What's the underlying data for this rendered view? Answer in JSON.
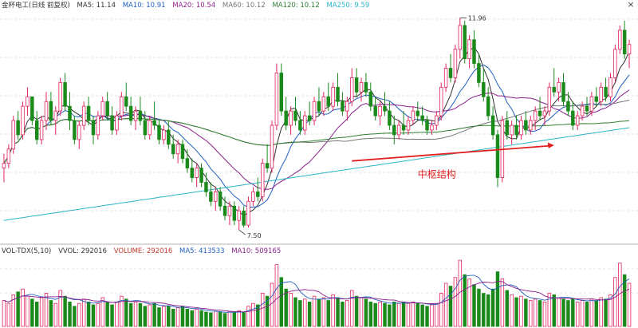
{
  "price_panel": {
    "stock_label": "金杯电工(日线 前复权)",
    "indicators": [
      {
        "label": "MA5: 11.14",
        "color": "#333333"
      },
      {
        "label": "MA10: 10.91",
        "color": "#1f5fbf"
      },
      {
        "label": "MA20: 10.54",
        "color": "#8a1f8a"
      },
      {
        "label": "MA60: 10.12",
        "color": "#777777"
      },
      {
        "label": "MA120: 10.12",
        "color": "#2e7d32"
      },
      {
        "label": "MA250: 9.59",
        "color": "#2bb5c6"
      }
    ],
    "high_label": "11.96",
    "low_label": "7.50",
    "annotation": "中枢结构",
    "close_symbol": "×"
  },
  "volume_panel": {
    "label": "VOL-TDX(5,10)",
    "indicators": [
      {
        "label": "VVOL: 292016",
        "color": "#333333"
      },
      {
        "label": "VOLUME: 292016",
        "color": "#c0392b"
      },
      {
        "label": "MA5: 413533",
        "color": "#1f5fbf"
      },
      {
        "label": "MA10: 509165",
        "color": "#8a1f8a"
      }
    ]
  },
  "colors": {
    "up": "#e0245e",
    "down": "#1a8a1a",
    "arrow": "#e02020",
    "annotation": "#e02020",
    "grid": "#c8c8c8"
  },
  "chart_data": {
    "type": "candlestick",
    "title": "金杯电工(日线 前复权)",
    "price_range": [
      7.3,
      12.1
    ],
    "grid": "dashed horizontal",
    "candles_ohlc": [
      [
        8.8,
        9.1,
        8.5,
        8.9
      ],
      [
        8.9,
        9.3,
        8.8,
        9.2
      ],
      [
        9.2,
        9.9,
        9.1,
        9.8
      ],
      [
        9.8,
        10.0,
        9.4,
        9.5
      ],
      [
        9.5,
        10.2,
        9.4,
        10.1
      ],
      [
        10.1,
        10.5,
        9.9,
        10.3
      ],
      [
        10.3,
        10.3,
        9.7,
        9.8
      ],
      [
        9.8,
        10.0,
        9.3,
        9.4
      ],
      [
        9.4,
        9.9,
        9.3,
        9.8
      ],
      [
        9.8,
        10.4,
        9.6,
        10.2
      ],
      [
        10.2,
        10.4,
        9.7,
        9.8
      ],
      [
        9.8,
        10.1,
        9.5,
        10.0
      ],
      [
        10.0,
        10.7,
        9.9,
        10.6
      ],
      [
        10.6,
        10.8,
        10.0,
        10.1
      ],
      [
        10.1,
        10.4,
        9.6,
        9.8
      ],
      [
        9.8,
        9.9,
        9.3,
        9.4
      ],
      [
        9.4,
        9.8,
        9.2,
        9.7
      ],
      [
        9.7,
        10.2,
        9.6,
        10.1
      ],
      [
        10.1,
        10.3,
        9.7,
        9.8
      ],
      [
        9.8,
        9.9,
        9.3,
        9.5
      ],
      [
        9.5,
        10.0,
        9.4,
        9.9
      ],
      [
        9.9,
        10.3,
        9.8,
        10.2
      ],
      [
        10.2,
        10.4,
        9.8,
        9.9
      ],
      [
        9.9,
        10.1,
        9.5,
        9.6
      ],
      [
        9.6,
        10.0,
        9.5,
        9.9
      ],
      [
        9.9,
        10.4,
        9.8,
        10.3
      ],
      [
        10.3,
        10.6,
        10.0,
        10.1
      ],
      [
        10.1,
        10.3,
        9.7,
        9.8
      ],
      [
        9.8,
        10.1,
        9.6,
        10.0
      ],
      [
        10.0,
        10.3,
        9.7,
        9.8
      ],
      [
        9.8,
        10.0,
        9.4,
        9.5
      ],
      [
        9.5,
        9.9,
        9.4,
        9.8
      ],
      [
        9.8,
        10.2,
        9.6,
        9.7
      ],
      [
        9.7,
        9.8,
        9.3,
        9.4
      ],
      [
        9.4,
        9.7,
        9.3,
        9.6
      ],
      [
        9.6,
        9.8,
        9.2,
        9.3
      ],
      [
        9.3,
        9.5,
        9.0,
        9.1
      ],
      [
        9.1,
        9.4,
        8.9,
        9.3
      ],
      [
        9.3,
        9.4,
        8.9,
        9.0
      ],
      [
        9.0,
        9.2,
        8.7,
        8.8
      ],
      [
        8.8,
        9.0,
        8.5,
        8.6
      ],
      [
        8.6,
        8.9,
        8.4,
        8.8
      ],
      [
        8.8,
        8.9,
        8.4,
        8.5
      ],
      [
        8.5,
        8.7,
        8.2,
        8.3
      ],
      [
        8.3,
        8.5,
        8.0,
        8.1
      ],
      [
        8.1,
        8.4,
        7.9,
        8.3
      ],
      [
        8.3,
        8.4,
        7.9,
        8.0
      ],
      [
        8.0,
        8.2,
        7.7,
        7.8
      ],
      [
        7.8,
        8.1,
        7.6,
        8.0
      ],
      [
        8.0,
        8.1,
        7.6,
        7.7
      ],
      [
        7.7,
        8.0,
        7.5,
        7.9
      ],
      [
        7.9,
        8.0,
        7.55,
        7.6
      ],
      [
        7.6,
        8.2,
        7.55,
        8.1
      ],
      [
        8.1,
        8.4,
        8.0,
        8.3
      ],
      [
        8.3,
        8.6,
        8.1,
        8.2
      ],
      [
        8.2,
        9.0,
        8.1,
        8.9
      ],
      [
        8.9,
        9.3,
        8.7,
        8.8
      ],
      [
        8.8,
        9.8,
        8.7,
        9.7
      ],
      [
        9.7,
        11.0,
        9.6,
        10.8
      ],
      [
        10.8,
        11.0,
        9.9,
        10.0
      ],
      [
        10.0,
        10.3,
        9.6,
        9.7
      ],
      [
        9.7,
        10.1,
        9.5,
        10.0
      ],
      [
        10.0,
        10.3,
        9.7,
        9.8
      ],
      [
        9.8,
        10.0,
        9.5,
        9.6
      ],
      [
        9.6,
        10.0,
        9.5,
        9.9
      ],
      [
        9.9,
        10.2,
        9.7,
        9.8
      ],
      [
        9.8,
        10.3,
        9.7,
        10.2
      ],
      [
        10.2,
        10.5,
        9.9,
        10.0
      ],
      [
        10.0,
        10.4,
        9.9,
        10.3
      ],
      [
        10.3,
        10.6,
        10.0,
        10.1
      ],
      [
        10.1,
        10.6,
        10.0,
        10.5
      ],
      [
        10.5,
        10.8,
        10.1,
        10.2
      ],
      [
        10.2,
        10.4,
        9.9,
        10.0
      ],
      [
        10.0,
        10.3,
        9.8,
        10.2
      ],
      [
        10.2,
        10.9,
        10.1,
        10.7
      ],
      [
        10.7,
        10.9,
        10.3,
        10.4
      ],
      [
        10.4,
        10.7,
        10.2,
        10.6
      ],
      [
        10.6,
        10.8,
        10.3,
        10.4
      ],
      [
        10.4,
        10.6,
        10.0,
        10.1
      ],
      [
        10.1,
        10.3,
        9.8,
        9.9
      ],
      [
        9.9,
        10.2,
        9.7,
        10.1
      ],
      [
        10.1,
        10.4,
        9.9,
        10.0
      ],
      [
        10.0,
        10.2,
        9.6,
        9.7
      ],
      [
        9.7,
        9.9,
        9.3,
        9.5
      ],
      [
        9.5,
        9.8,
        9.4,
        9.7
      ],
      [
        9.7,
        10.0,
        9.5,
        9.6
      ],
      [
        9.6,
        9.9,
        9.5,
        9.8
      ],
      [
        9.8,
        10.1,
        9.7,
        10.0
      ],
      [
        10.0,
        10.2,
        9.8,
        9.9
      ],
      [
        9.9,
        10.1,
        9.7,
        9.8
      ],
      [
        9.8,
        9.9,
        9.5,
        9.6
      ],
      [
        9.6,
        9.8,
        9.5,
        9.7
      ],
      [
        9.7,
        10.0,
        9.6,
        9.9
      ],
      [
        9.9,
        10.6,
        9.8,
        10.5
      ],
      [
        10.5,
        11.0,
        10.4,
        10.9
      ],
      [
        10.9,
        11.2,
        10.6,
        10.7
      ],
      [
        10.7,
        11.4,
        10.6,
        11.3
      ],
      [
        11.3,
        11.96,
        11.1,
        11.8
      ],
      [
        11.8,
        11.9,
        11.0,
        11.1
      ],
      [
        11.1,
        11.6,
        10.9,
        11.5
      ],
      [
        11.5,
        11.7,
        10.9,
        11.0
      ],
      [
        11.0,
        11.2,
        10.5,
        10.6
      ],
      [
        10.6,
        10.9,
        10.2,
        10.3
      ],
      [
        10.3,
        10.5,
        9.8,
        9.9
      ],
      [
        9.9,
        10.1,
        9.4,
        9.5
      ],
      [
        9.5,
        9.6,
        8.4,
        8.6
      ],
      [
        8.6,
        9.9,
        8.5,
        9.8
      ],
      [
        9.8,
        10.0,
        9.4,
        9.5
      ],
      [
        9.5,
        9.8,
        9.3,
        9.7
      ],
      [
        9.7,
        9.9,
        9.4,
        9.5
      ],
      [
        9.5,
        9.9,
        9.4,
        9.8
      ],
      [
        9.8,
        10.0,
        9.5,
        9.6
      ],
      [
        9.6,
        9.9,
        9.5,
        9.8
      ],
      [
        9.8,
        10.1,
        9.6,
        10.0
      ],
      [
        10.0,
        10.3,
        9.8,
        9.9
      ],
      [
        9.9,
        10.1,
        9.7,
        10.0
      ],
      [
        10.0,
        10.6,
        9.9,
        10.5
      ],
      [
        10.5,
        10.9,
        10.3,
        10.4
      ],
      [
        10.4,
        10.7,
        10.2,
        10.6
      ],
      [
        10.6,
        10.8,
        10.1,
        10.2
      ],
      [
        10.2,
        10.4,
        9.9,
        10.0
      ],
      [
        10.0,
        10.2,
        9.6,
        9.7
      ],
      [
        9.7,
        10.0,
        9.6,
        9.9
      ],
      [
        9.9,
        10.2,
        9.8,
        10.1
      ],
      [
        10.1,
        10.3,
        9.9,
        10.0
      ],
      [
        10.0,
        10.4,
        9.9,
        10.3
      ],
      [
        10.3,
        10.5,
        10.1,
        10.2
      ],
      [
        10.2,
        10.6,
        10.1,
        10.5
      ],
      [
        10.5,
        10.7,
        10.2,
        10.3
      ],
      [
        10.3,
        10.8,
        10.2,
        10.7
      ],
      [
        10.7,
        11.4,
        10.6,
        11.3
      ],
      [
        11.3,
        11.8,
        11.2,
        11.7
      ],
      [
        11.7,
        11.9,
        11.1,
        11.2
      ],
      [
        11.2,
        11.5,
        10.9,
        11.4
      ]
    ],
    "volume": [
      180,
      160,
      220,
      240,
      260,
      210,
      190,
      170,
      200,
      230,
      180,
      160,
      250,
      210,
      170,
      140,
      160,
      190,
      170,
      150,
      160,
      200,
      170,
      150,
      170,
      210,
      190,
      160,
      170,
      160,
      140,
      150,
      160,
      130,
      140,
      140,
      120,
      130,
      140,
      120,
      110,
      120,
      110,
      100,
      95,
      105,
      100,
      90,
      105,
      95,
      110,
      100,
      140,
      160,
      150,
      230,
      210,
      300,
      430,
      340,
      260,
      230,
      200,
      180,
      190,
      170,
      210,
      190,
      200,
      180,
      220,
      200,
      170,
      180,
      250,
      210,
      200,
      190,
      170,
      160,
      170,
      160,
      150,
      170,
      160,
      170,
      160,
      170,
      160,
      150,
      140,
      150,
      160,
      230,
      300,
      280,
      340,
      460,
      360,
      330,
      290,
      260,
      230,
      220,
      260,
      380,
      330,
      250,
      220,
      200,
      210,
      190,
      180,
      190,
      180,
      170,
      230,
      220,
      200,
      190,
      180,
      190,
      170,
      180,
      170,
      190,
      180,
      200,
      190,
      220,
      340,
      440,
      360,
      300
    ],
    "annotations": [
      {
        "text": "11.96",
        "type": "high"
      },
      {
        "text": "7.50",
        "type": "low"
      },
      {
        "text": "中枢结构",
        "type": "label"
      }
    ]
  }
}
